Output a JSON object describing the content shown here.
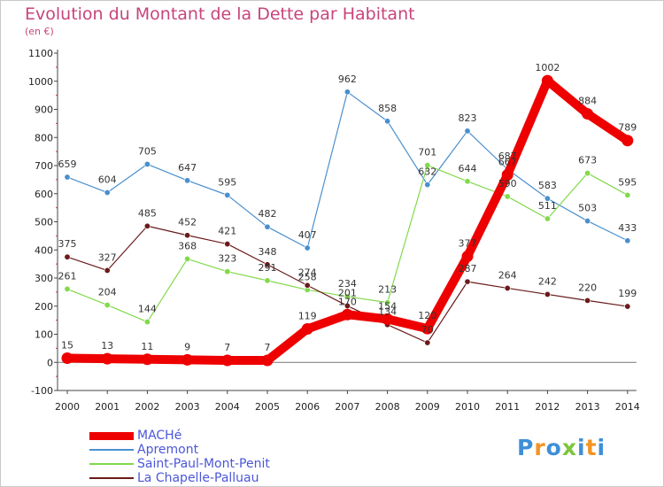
{
  "chart_data": {
    "type": "line",
    "title": "Evolution du Montant de la Dette par Habitant",
    "subtitle": "(en €)",
    "xlabel": "",
    "ylabel": "",
    "ylim": [
      -100,
      1100
    ],
    "yticks": [
      "-100",
      "0",
      "100",
      "200",
      "300",
      "400",
      "500",
      "600",
      "700",
      "800",
      "900",
      "1000",
      "1100"
    ],
    "categories": [
      "2000",
      "2001",
      "2002",
      "2003",
      "2004",
      "2005",
      "2006",
      "2007",
      "2008",
      "2009",
      "2010",
      "2011",
      "2012",
      "2013",
      "2014"
    ],
    "grid": false,
    "legend_position": "bottom-left",
    "series": [
      {
        "name": "MACHé",
        "color": "#ee0000",
        "values": [
          15,
          13,
          11,
          9,
          7,
          7,
          119,
          170,
          154,
          120,
          377,
          667,
          1002,
          884,
          789
        ],
        "labels": [
          "15",
          "13",
          "11",
          "9",
          "7",
          "7",
          "119",
          "170",
          "154",
          "120",
          "377",
          "667",
          "1002",
          "884",
          "789"
        ]
      },
      {
        "name": "Apremont",
        "color": "#4a8fcd",
        "values": [
          659,
          604,
          705,
          647,
          595,
          482,
          407,
          962,
          858,
          632,
          823,
          687,
          583,
          503,
          433
        ],
        "labels": [
          "659",
          "604",
          "705",
          "647",
          "595",
          "482",
          "407",
          "962",
          "858",
          "632",
          "823",
          "687",
          "583",
          "503",
          "433"
        ]
      },
      {
        "name": "Saint-Paul-Mont-Penit",
        "color": "#82d94c",
        "values": [
          261,
          204,
          144,
          368,
          323,
          291,
          258,
          234,
          213,
          701,
          644,
          590,
          511,
          673,
          595
        ],
        "labels": [
          "261",
          "204",
          "144",
          "368",
          "323",
          "291",
          "258",
          "234",
          "213",
          "701",
          "644",
          "590",
          "511",
          "673",
          "595"
        ]
      },
      {
        "name": "La Chapelle-Palluau",
        "color": "#6b1a1a",
        "values": [
          375,
          327,
          485,
          452,
          421,
          348,
          274,
          201,
          134,
          70,
          287,
          264,
          242,
          220,
          199
        ],
        "labels": [
          "375",
          "327",
          "485",
          "452",
          "421",
          "348",
          "274",
          "201",
          "134",
          "70",
          "287",
          "264",
          "242",
          "220",
          "199"
        ]
      }
    ]
  },
  "brand": {
    "letters": [
      "P",
      "r",
      "o",
      "x",
      "i",
      "t",
      "i"
    ],
    "colors": [
      "#3f8fd8",
      "#f29424",
      "#3f8fd8",
      "#7bc63a",
      "#3f8fd8",
      "#f29424",
      "#3f8fd8"
    ]
  }
}
